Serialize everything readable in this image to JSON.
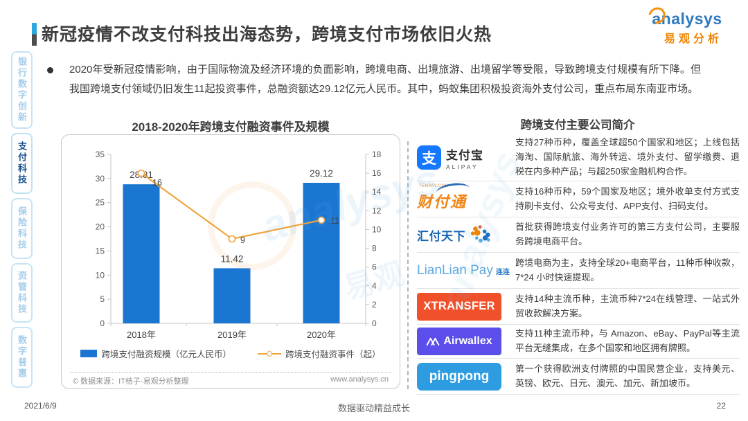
{
  "header": {
    "title": "新冠疫情不改支付科技出海态势，跨境支付市场依旧火热",
    "logo": {
      "brand": "analysys",
      "brand_cn": "易观分析"
    }
  },
  "sidebar": {
    "items": [
      {
        "label": "银行数字创新",
        "active": false
      },
      {
        "label": "支付科技",
        "active": true
      },
      {
        "label": "保险科技",
        "active": false
      },
      {
        "label": "资管科技",
        "active": false
      },
      {
        "label": "数字普惠",
        "active": false
      }
    ]
  },
  "bullet": {
    "text": "2020年受新冠疫情影响，由于国际物流及经济环境的负面影响，跨境电商、出境旅游、出境留学等受限，导致跨境支付规模有所下降。但我国跨境支付领域仍旧发生11起投资事件，总融资额达29.12亿元人民币。其中，蚂蚁集团积极投资海外支付公司，重点布局东南亚市场。"
  },
  "chart_data": {
    "type": "bar",
    "title": "2018-2020年跨境支付融资事件及规模",
    "categories": [
      "2018年",
      "2019年",
      "2020年"
    ],
    "series": [
      {
        "name": "跨境支付融资规模（亿元人民币）",
        "type": "bar",
        "axis": "left",
        "color": "#1B76D2",
        "values": [
          28.81,
          11.42,
          29.12
        ],
        "labels": [
          "28.81",
          "11.42",
          "29.12"
        ]
      },
      {
        "name": "跨境支付融资事件（起）",
        "type": "line",
        "axis": "right",
        "color": "#EFA43C",
        "values": [
          16,
          9,
          11
        ],
        "labels": [
          "16",
          "9",
          "11"
        ]
      }
    ],
    "left_axis": {
      "min": 0,
      "max": 35,
      "step": 5
    },
    "right_axis": {
      "min": 0,
      "max": 18,
      "step": 2
    },
    "grid": false,
    "legend_position": "bottom",
    "source_left": "© 数据来源：IT桔子·易观分析整理",
    "source_right": "www.analysys.cn"
  },
  "companies": {
    "title": "跨境支付主要公司简介",
    "rows": [
      {
        "name": "支付宝",
        "logo": {
          "kind": "alipay",
          "text": "支付宝",
          "subtext": "ALIPAY",
          "glyph": "支",
          "color": "#1677FF"
        },
        "desc": "支持27种币种，覆盖全球超50个国家和地区；上线包括海淘、国际航旅、海外转运、境外支付、留学缴费、退税在内多种产品；与超250家金融机构合作。"
      },
      {
        "name": "财付通",
        "logo": {
          "kind": "tenpay",
          "text": "财付通",
          "subtext": "TENPAY.COM",
          "color": "#F08519",
          "accent": "#2E6DB4"
        },
        "desc": "支持16种币种，59个国家及地区；境外收单支付方式支持刷卡支付、公众号支付、APP支付、扫码支付。"
      },
      {
        "name": "汇付天下",
        "logo": {
          "kind": "huifu",
          "text": "汇付天下",
          "color": "#1565B4"
        },
        "desc": "首批获得跨境支付业务许可的第三方支付公司，主要服务跨境电商平台。"
      },
      {
        "name": "连连支付",
        "logo": {
          "kind": "lianlian",
          "text": "LianLian Pay",
          "subtext": "连连",
          "color": "#5FA8DC"
        },
        "desc": "跨境电商为主，支持全球20+电商平台，11种币种收款，7*24 小时快速提现。"
      },
      {
        "name": "XTransfer",
        "logo": {
          "kind": "box",
          "text": "XTRANSFER",
          "color": "#F1512A",
          "box_class": "xtransfer"
        },
        "desc": "支持14种主流币种，主流币种7*24在线管理、一站式外贸收款解决方案。"
      },
      {
        "name": "Airwallex",
        "logo": {
          "kind": "airwallex",
          "text": "Airwallex",
          "color": "#5B4EEA",
          "box_class": "airwallex"
        },
        "desc": "支持11种主流币种，与 Amazon、eBay、PayPal等主流平台无缝集成，在多个国家和地区拥有牌照。"
      },
      {
        "name": "PingPong",
        "logo": {
          "kind": "box",
          "text": "pingpong",
          "color": "#2D9CE0",
          "box_class": "pingpong"
        },
        "desc": "第一个获得欧洲支付牌照的中国民营企业，支持美元、英镑、欧元、日元、澳元、加元、新加坡币。"
      }
    ]
  },
  "footer": {
    "date": "2021/6/9",
    "slogan": "数据驱动精益成长",
    "page": "22"
  },
  "watermark": {
    "text": "analysys",
    "text_cn": "易观"
  }
}
